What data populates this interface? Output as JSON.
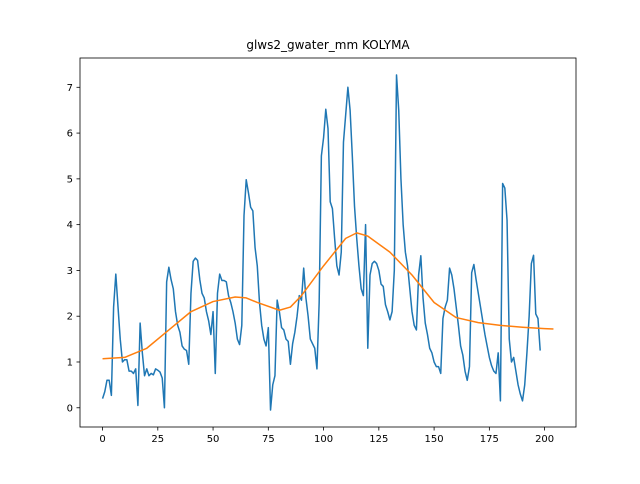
{
  "chart_data": {
    "type": "line",
    "title": "glws2_gwater_mm KOLYMA",
    "xlim": [
      -10.2,
      214.2
    ],
    "ylim": [
      -0.42,
      7.64
    ],
    "xticks": [
      0,
      25,
      50,
      75,
      100,
      125,
      150,
      175,
      200
    ],
    "yticks": [
      0,
      1,
      2,
      3,
      4,
      5,
      6,
      7
    ],
    "series": [
      {
        "color": "#1f77b4",
        "x": [
          0,
          1,
          2,
          3,
          4,
          5,
          6,
          7,
          8,
          9,
          10,
          11,
          12,
          13,
          14,
          15,
          16,
          17,
          18,
          19,
          20,
          21,
          22,
          23,
          24,
          25,
          26,
          27,
          28,
          29,
          30,
          31,
          32,
          33,
          34,
          35,
          36,
          37,
          38,
          39,
          40,
          41,
          42,
          43,
          44,
          45,
          46,
          47,
          48,
          49,
          50,
          51,
          52,
          53,
          54,
          55,
          56,
          57,
          58,
          59,
          60,
          61,
          62,
          63,
          64,
          65,
          66,
          67,
          68,
          69,
          70,
          71,
          72,
          73,
          74,
          75,
          76,
          77,
          78,
          79,
          80,
          81,
          82,
          83,
          84,
          85,
          86,
          87,
          88,
          89,
          90,
          91,
          92,
          93,
          94,
          95,
          96,
          97,
          98,
          99,
          100,
          101,
          102,
          103,
          104,
          105,
          106,
          107,
          108,
          109,
          110,
          111,
          112,
          113,
          114,
          115,
          116,
          117,
          118,
          119,
          120,
          121,
          122,
          123,
          124,
          125,
          126,
          127,
          128,
          129,
          130,
          131,
          132,
          133,
          134,
          135,
          136,
          137,
          138,
          139,
          140,
          141,
          142,
          143,
          144,
          145,
          146,
          147,
          148,
          149,
          150,
          151,
          152,
          153,
          154,
          155,
          156,
          157,
          158,
          159,
          160,
          161,
          162,
          163,
          164,
          165,
          166,
          167,
          168,
          169,
          170,
          171,
          172,
          173,
          174,
          175,
          176,
          177,
          178,
          179,
          180,
          181,
          182,
          183,
          184,
          185,
          186,
          187,
          188,
          189,
          190,
          191,
          192,
          193,
          194,
          195,
          196,
          197,
          198
        ],
        "values": [
          0.2,
          0.35,
          0.6,
          0.6,
          0.27,
          2.2,
          2.92,
          2.2,
          1.5,
          1.0,
          1.05,
          1.05,
          0.8,
          0.8,
          0.75,
          0.85,
          0.05,
          1.85,
          1.2,
          0.7,
          0.85,
          0.7,
          0.75,
          0.72,
          0.85,
          0.82,
          0.78,
          0.65,
          0.0,
          2.75,
          3.07,
          2.8,
          2.6,
          2.1,
          1.8,
          1.65,
          1.35,
          1.28,
          1.25,
          0.95,
          2.5,
          3.2,
          3.27,
          3.22,
          2.8,
          2.5,
          2.4,
          2.1,
          1.9,
          1.6,
          2.1,
          0.75,
          2.5,
          2.92,
          2.78,
          2.78,
          2.75,
          2.45,
          2.3,
          2.1,
          1.85,
          1.5,
          1.38,
          1.8,
          4.2,
          4.98,
          4.7,
          4.38,
          4.3,
          3.5,
          3.1,
          2.3,
          1.8,
          1.5,
          1.35,
          1.75,
          -0.05,
          0.5,
          0.7,
          2.35,
          2.1,
          1.75,
          1.7,
          1.5,
          1.45,
          0.95,
          1.4,
          1.65,
          2.0,
          2.45,
          2.35,
          3.05,
          2.4,
          2.0,
          1.5,
          1.4,
          1.3,
          0.85,
          2.3,
          5.5,
          5.9,
          6.52,
          6.1,
          4.5,
          4.35,
          3.7,
          3.1,
          2.9,
          3.4,
          5.8,
          6.4,
          7.0,
          6.5,
          5.5,
          4.4,
          3.7,
          3.1,
          2.6,
          2.45,
          4.0,
          1.3,
          2.9,
          3.15,
          3.2,
          3.15,
          3.0,
          2.7,
          2.65,
          2.25,
          2.1,
          1.92,
          2.1,
          3.0,
          7.27,
          6.5,
          5.0,
          4.0,
          3.4,
          3.1,
          2.6,
          2.1,
          1.8,
          1.7,
          2.9,
          3.32,
          2.4,
          1.85,
          1.6,
          1.3,
          1.2,
          1.0,
          0.9,
          0.9,
          0.75,
          1.95,
          2.2,
          2.35,
          3.05,
          2.9,
          2.6,
          2.2,
          1.8,
          1.35,
          1.15,
          0.8,
          0.6,
          0.9,
          2.95,
          3.13,
          2.8,
          2.5,
          2.2,
          1.9,
          1.6,
          1.35,
          1.1,
          0.92,
          0.8,
          0.75,
          1.2,
          0.15,
          4.9,
          4.8,
          4.1,
          1.5,
          1.0,
          1.1,
          0.8,
          0.5,
          0.3,
          0.15,
          0.5,
          1.2,
          2.0,
          3.15,
          3.33,
          2.05,
          1.95,
          1.25
        ]
      },
      {
        "color": "#ff7f0e",
        "x": [
          0,
          10,
          20,
          30,
          40,
          50,
          60,
          65,
          70,
          80,
          85,
          90,
          100,
          110,
          115,
          120,
          130,
          140,
          150,
          160,
          170,
          180,
          190,
          200,
          204
        ],
        "values": [
          1.07,
          1.1,
          1.3,
          1.7,
          2.1,
          2.32,
          2.42,
          2.4,
          2.3,
          2.13,
          2.2,
          2.45,
          3.1,
          3.7,
          3.82,
          3.75,
          3.4,
          2.9,
          2.3,
          1.97,
          1.86,
          1.8,
          1.76,
          1.73,
          1.72
        ]
      }
    ]
  }
}
